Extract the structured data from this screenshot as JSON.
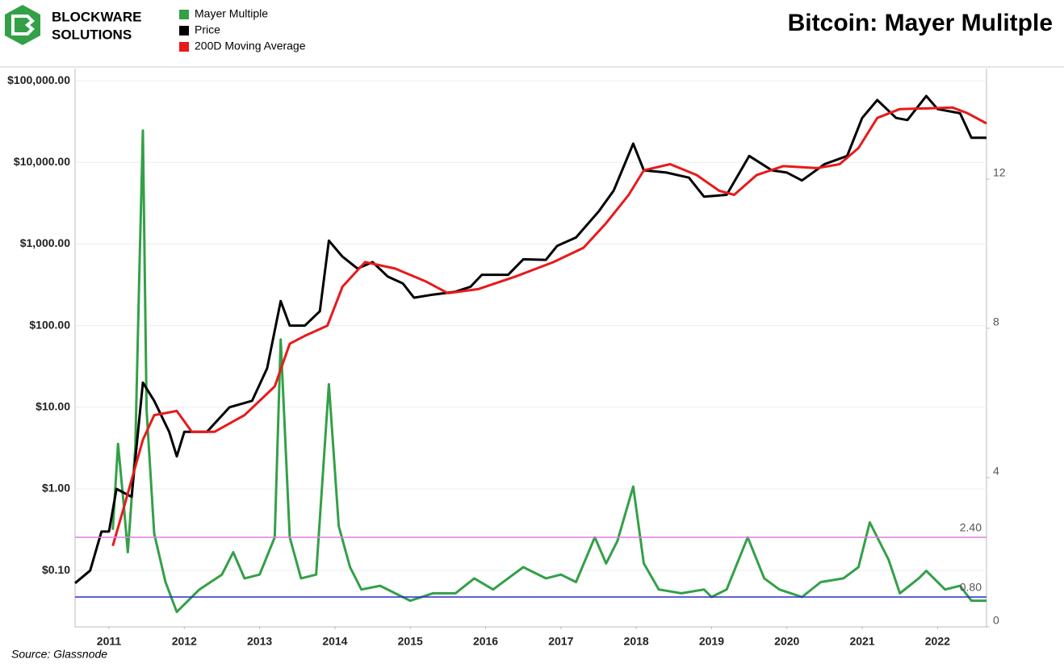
{
  "logo": {
    "lines": [
      "BLOCKWARE",
      "SOLUTIONS"
    ]
  },
  "chart_data": {
    "type": "line",
    "title": "Bitcoin: Mayer Mulitple",
    "source": "Source: Glassnode",
    "yscale": "log",
    "xlim": [
      2010.55,
      2022.65
    ],
    "xticks": [
      2011,
      2012,
      2013,
      2014,
      2015,
      2016,
      2017,
      2018,
      2019,
      2020,
      2021,
      2022
    ],
    "ylim": [
      0.0204,
      141000
    ],
    "yticks": [
      {
        "value": 0.1,
        "label": "$0.10"
      },
      {
        "value": 1,
        "label": "$1.00"
      },
      {
        "value": 10,
        "label": "$10.00"
      },
      {
        "value": 100,
        "label": "$100.00"
      },
      {
        "value": 1000,
        "label": "$1,000.00"
      },
      {
        "value": 10000,
        "label": "$10,000.00"
      },
      {
        "value": 100000,
        "label": "$100,000.00"
      }
    ],
    "y2lim": [
      0,
      14.96
    ],
    "y2ticks": [
      0,
      4,
      8,
      12
    ],
    "grid": true,
    "hlines": [
      {
        "value": 2.4,
        "label": "2.40",
        "color": "#e07ee0"
      },
      {
        "value": 0.8,
        "label": "0.80",
        "color": "#2a2ad0"
      }
    ],
    "series": [
      {
        "name": "Mayer Multiple",
        "color": "#33a047",
        "axis": "y2",
        "x": [
          2011.05,
          2011.12,
          2011.2,
          2011.25,
          2011.35,
          2011.4,
          2011.45,
          2011.5,
          2011.6,
          2011.75,
          2011.9,
          2012.0,
          2012.2,
          2012.5,
          2012.65,
          2012.8,
          2013.0,
          2013.2,
          2013.28,
          2013.4,
          2013.55,
          2013.75,
          2013.92,
          2014.05,
          2014.2,
          2014.35,
          2014.6,
          2014.8,
          2015.0,
          2015.3,
          2015.6,
          2015.85,
          2016.1,
          2016.5,
          2016.8,
          2017.0,
          2017.2,
          2017.45,
          2017.6,
          2017.75,
          2017.96,
          2018.1,
          2018.3,
          2018.6,
          2018.9,
          2019.0,
          2019.2,
          2019.48,
          2019.7,
          2019.9,
          2020.2,
          2020.45,
          2020.75,
          2020.95,
          2021.1,
          2021.2,
          2021.35,
          2021.5,
          2021.75,
          2021.85,
          2022.1,
          2022.3,
          2022.45,
          2022.65
        ],
        "values": [
          2.6,
          4.9,
          3.2,
          2.0,
          4.8,
          9.2,
          13.3,
          5.8,
          2.5,
          1.2,
          0.4,
          0.6,
          1.0,
          1.4,
          2.0,
          1.3,
          1.4,
          2.4,
          7.7,
          2.4,
          1.3,
          1.4,
          6.5,
          2.7,
          1.6,
          1.0,
          1.1,
          0.9,
          0.7,
          0.9,
          0.9,
          1.3,
          1.0,
          1.6,
          1.3,
          1.4,
          1.2,
          2.4,
          1.7,
          2.3,
          3.76,
          1.7,
          1.0,
          0.9,
          1.0,
          0.8,
          1.0,
          2.4,
          1.3,
          1.0,
          0.8,
          1.2,
          1.3,
          1.6,
          2.8,
          2.4,
          1.8,
          0.9,
          1.3,
          1.5,
          1.0,
          1.1,
          0.7,
          0.7
        ]
      },
      {
        "name": "Price",
        "color": "#000000",
        "x": [
          2010.55,
          2010.75,
          2010.9,
          2011.0,
          2011.1,
          2011.3,
          2011.45,
          2011.6,
          2011.8,
          2011.9,
          2012.0,
          2012.3,
          2012.6,
          2012.9,
          2013.1,
          2013.28,
          2013.4,
          2013.6,
          2013.8,
          2013.92,
          2014.1,
          2014.3,
          2014.5,
          2014.7,
          2014.9,
          2015.05,
          2015.3,
          2015.6,
          2015.8,
          2015.95,
          2016.3,
          2016.5,
          2016.8,
          2016.95,
          2017.2,
          2017.5,
          2017.7,
          2017.96,
          2018.1,
          2018.4,
          2018.7,
          2018.9,
          2019.2,
          2019.5,
          2019.8,
          2020.0,
          2020.2,
          2020.5,
          2020.8,
          2021.0,
          2021.2,
          2021.45,
          2021.6,
          2021.85,
          2022.0,
          2022.3,
          2022.45,
          2022.65
        ],
        "values": [
          0.07,
          0.1,
          0.3,
          0.3,
          1.0,
          0.8,
          20,
          12,
          5,
          2.5,
          5,
          5,
          10,
          12,
          30,
          200,
          100,
          100,
          150,
          1100,
          700,
          500,
          600,
          400,
          330,
          220,
          240,
          260,
          300,
          420,
          420,
          650,
          640,
          950,
          1200,
          2500,
          4500,
          17000,
          8000,
          7500,
          6500,
          3800,
          4000,
          12000,
          8000,
          7500,
          6000,
          9500,
          12000,
          35000,
          58000,
          35000,
          33000,
          65000,
          45000,
          40000,
          20000,
          20000
        ]
      },
      {
        "name": "200D Moving Average",
        "color": "#e8191b",
        "x": [
          2011.05,
          2011.2,
          2011.45,
          2011.6,
          2011.9,
          2012.1,
          2012.4,
          2012.8,
          2013.2,
          2013.4,
          2013.6,
          2013.9,
          2014.1,
          2014.4,
          2014.8,
          2015.2,
          2015.5,
          2015.9,
          2016.4,
          2016.9,
          2017.3,
          2017.6,
          2017.9,
          2018.1,
          2018.45,
          2018.8,
          2019.1,
          2019.3,
          2019.6,
          2019.95,
          2020.4,
          2020.7,
          2020.95,
          2021.2,
          2021.5,
          2021.9,
          2022.2,
          2022.4,
          2022.65
        ],
        "values": [
          0.2,
          0.6,
          4,
          8,
          9,
          5,
          5,
          8,
          18,
          60,
          75,
          100,
          300,
          600,
          500,
          350,
          250,
          280,
          400,
          600,
          900,
          1800,
          4000,
          8000,
          9500,
          7000,
          4500,
          4000,
          7000,
          9000,
          8500,
          9500,
          15000,
          35000,
          45000,
          46000,
          47000,
          40000,
          30000
        ]
      }
    ]
  }
}
